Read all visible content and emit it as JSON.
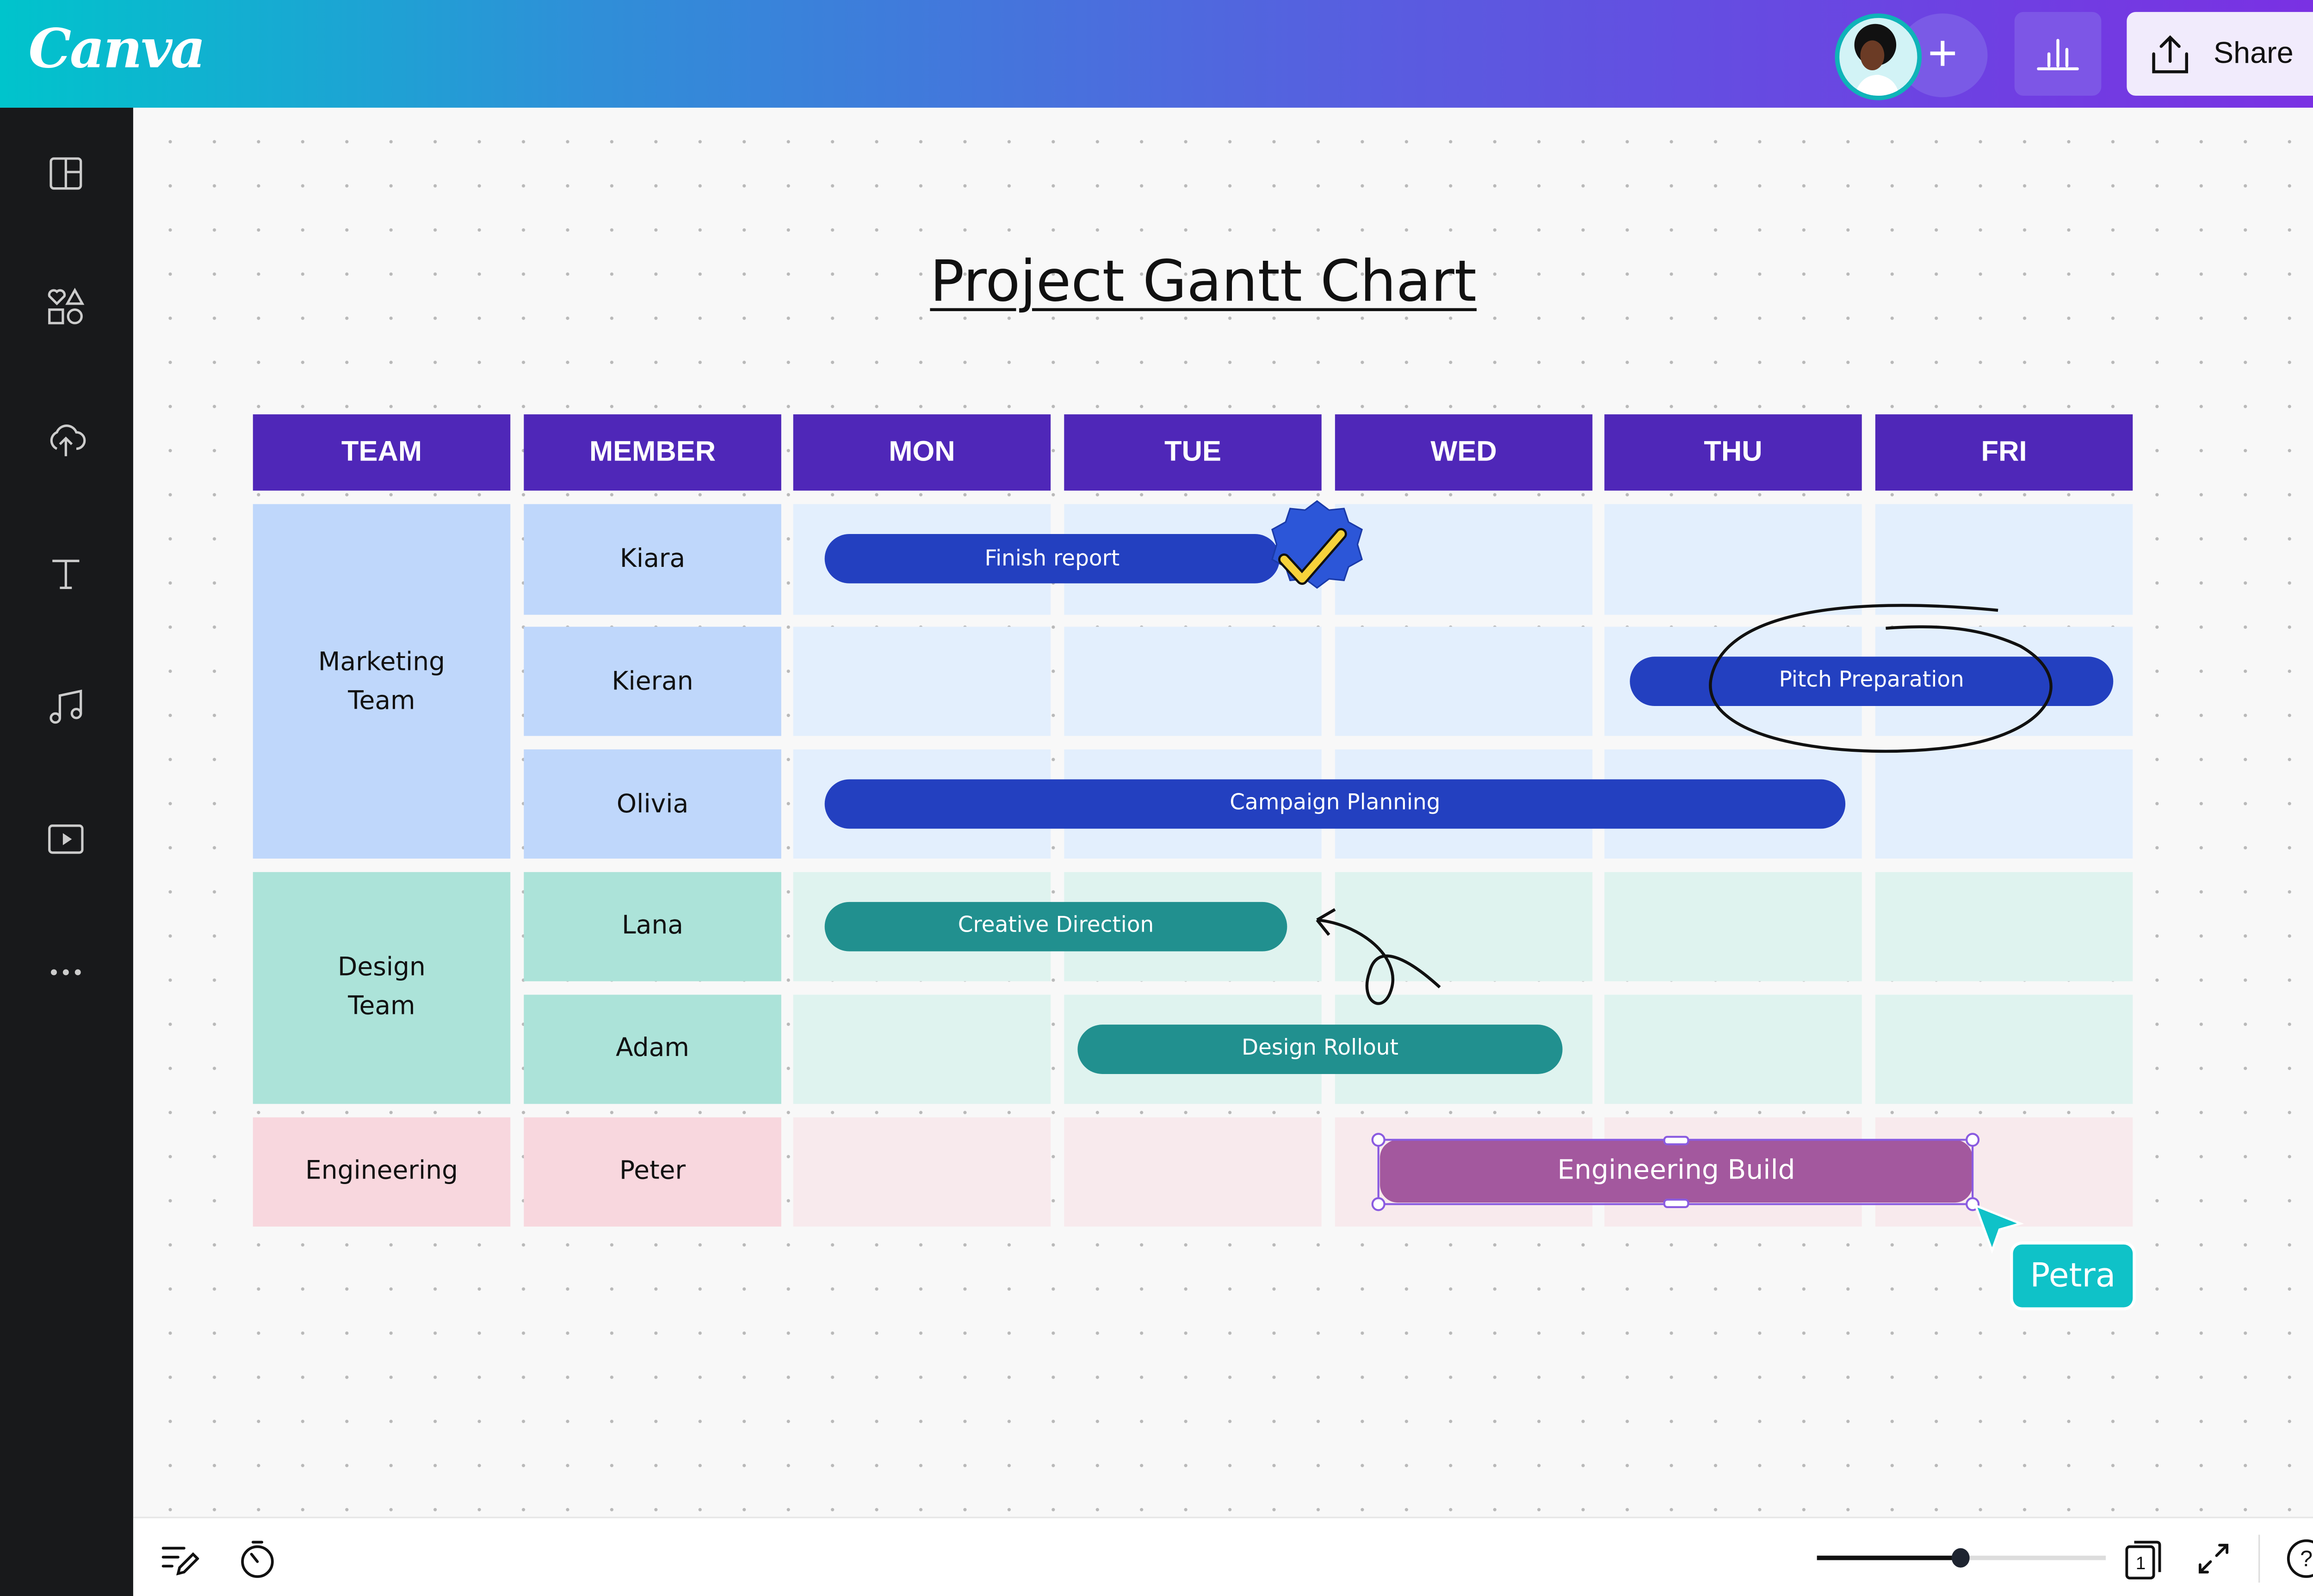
{
  "app": {
    "logo": "Canva",
    "share_label": "Share"
  },
  "colors": {
    "header": "#4f27b8",
    "marketing_team": "#bfd7fb",
    "marketing_cell": "#e3effd",
    "design_team": "#ace3d9",
    "design_cell": "#dff3ef",
    "eng_team": "#f8d7de",
    "eng_cell": "#f8eaed",
    "bar_blue": "#2340c0",
    "bar_teal": "#21908f",
    "bar_purple": "#a3589e",
    "collaborator": "#0fc2c8"
  },
  "sidebar": {
    "items": [
      {
        "icon": "layout-icon"
      },
      {
        "icon": "elements-icon"
      },
      {
        "icon": "upload-cloud-icon"
      },
      {
        "icon": "text-icon"
      },
      {
        "icon": "music-icon"
      },
      {
        "icon": "video-icon"
      },
      {
        "icon": "more-icon"
      }
    ]
  },
  "doc": {
    "title": "Project Gantt Chart",
    "headers": [
      "TEAM",
      "MEMBER",
      "MON",
      "TUE",
      "WED",
      "THU",
      "FRI"
    ],
    "teams": [
      {
        "name": "Marketing\nTeam",
        "key": "marketing",
        "members": [
          "Kiara",
          "Kieran",
          "Olivia"
        ]
      },
      {
        "name": "Design\nTeam",
        "key": "design",
        "members": [
          "Lana",
          "Adam"
        ]
      },
      {
        "name": "Engineering",
        "key": "eng",
        "members": [
          "Peter"
        ]
      }
    ],
    "tasks": [
      {
        "label": "Finish report",
        "member": "Kiara",
        "start": "MON",
        "end": "TUE",
        "color": "bar_blue",
        "done": true
      },
      {
        "label": "Pitch Preparation",
        "member": "Kieran",
        "start": "THU",
        "end": "FRI",
        "color": "bar_blue",
        "circled": true
      },
      {
        "label": "Campaign Planning",
        "member": "Olivia",
        "start": "MON",
        "end": "THU",
        "color": "bar_blue"
      },
      {
        "label": "Creative Direction",
        "member": "Lana",
        "start": "MON",
        "end": "TUE",
        "color": "bar_teal"
      },
      {
        "label": "Design Rollout",
        "member": "Adam",
        "start": "TUE",
        "end": "WED",
        "color": "bar_teal"
      },
      {
        "label": "Engineering Build",
        "member": "Peter",
        "start": "WED",
        "end": "FRI",
        "color": "bar_purple",
        "selected": true
      }
    ],
    "collaborator_cursor": "Petra"
  },
  "bottom": {
    "zoom_percent": 62,
    "page_number": "1"
  }
}
